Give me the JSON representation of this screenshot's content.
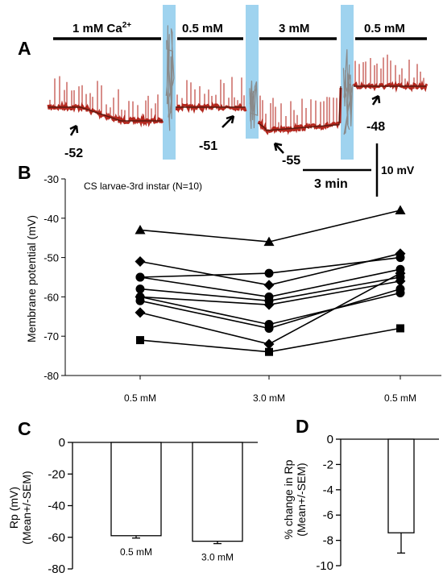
{
  "panel_labels": {
    "a": "A",
    "b": "B",
    "c": "C",
    "d": "D"
  },
  "chart_data": [
    {
      "panel": "A",
      "type": "line",
      "description": "membrane potential recording trace",
      "solutions": [
        {
          "label": "1 mM Ca",
          "superscript": "2+"
        },
        {
          "label": "0.5 mM"
        },
        {
          "label": "3 mM"
        },
        {
          "label": "0.5 mM"
        }
      ],
      "resting_potentials": [
        "-52",
        "-51",
        "-55",
        "-48"
      ],
      "scale_bar": {
        "time": "3 min",
        "voltage": "10 mV"
      },
      "trace_color": "#b01e14",
      "wash_color": "#9fd3ef"
    },
    {
      "panel": "B",
      "type": "scatter",
      "title": "CS larvae-3rd instar (N=10)",
      "ylabel": "Membrane potential (mV)",
      "categories": [
        "0.5 mM",
        "3.0 mM",
        "0.5 mM"
      ],
      "ylim": [
        -80,
        -30
      ],
      "yticks": [
        -30,
        -40,
        -50,
        -60,
        -70,
        -80
      ],
      "series": [
        {
          "marker": "triangle",
          "values": [
            -43,
            -46,
            -38
          ]
        },
        {
          "marker": "diamond",
          "values": [
            -51,
            -57,
            -49
          ]
        },
        {
          "marker": "circle",
          "values": [
            -55,
            -54,
            -50
          ]
        },
        {
          "marker": "circle",
          "values": [
            -55,
            -60,
            -53
          ]
        },
        {
          "marker": "circle",
          "values": [
            -58,
            -61,
            -55
          ]
        },
        {
          "marker": "circle",
          "values": [
            -60,
            -67,
            -59
          ]
        },
        {
          "marker": "circle",
          "values": [
            -61,
            -68,
            -58
          ]
        },
        {
          "marker": "diamond",
          "values": [
            -60,
            -62,
            -56
          ]
        },
        {
          "marker": "diamond",
          "values": [
            -64,
            -72,
            -54
          ]
        },
        {
          "marker": "square",
          "values": [
            -71,
            -74,
            -68
          ]
        }
      ]
    },
    {
      "panel": "C",
      "type": "bar",
      "ylabel": "Rp (mV)",
      "ylabel2": "(Mean+/-SEM)",
      "categories": [
        "0.5 mM",
        "3.0 mM"
      ],
      "values": [
        -59,
        -62.5
      ],
      "errors": [
        1.5,
        1.5
      ],
      "ylim": [
        -80,
        0
      ],
      "yticks": [
        0,
        -20,
        -40,
        -60,
        -80
      ]
    },
    {
      "panel": "D",
      "type": "bar",
      "ylabel": "% change in Rp",
      "ylabel2": "(Mean+/-SEM)",
      "categories": [
        ""
      ],
      "values": [
        -7.4
      ],
      "errors": [
        1.6
      ],
      "ylim": [
        -10,
        0
      ],
      "yticks": [
        0,
        -2,
        -4,
        -6,
        -8,
        -10
      ]
    }
  ]
}
